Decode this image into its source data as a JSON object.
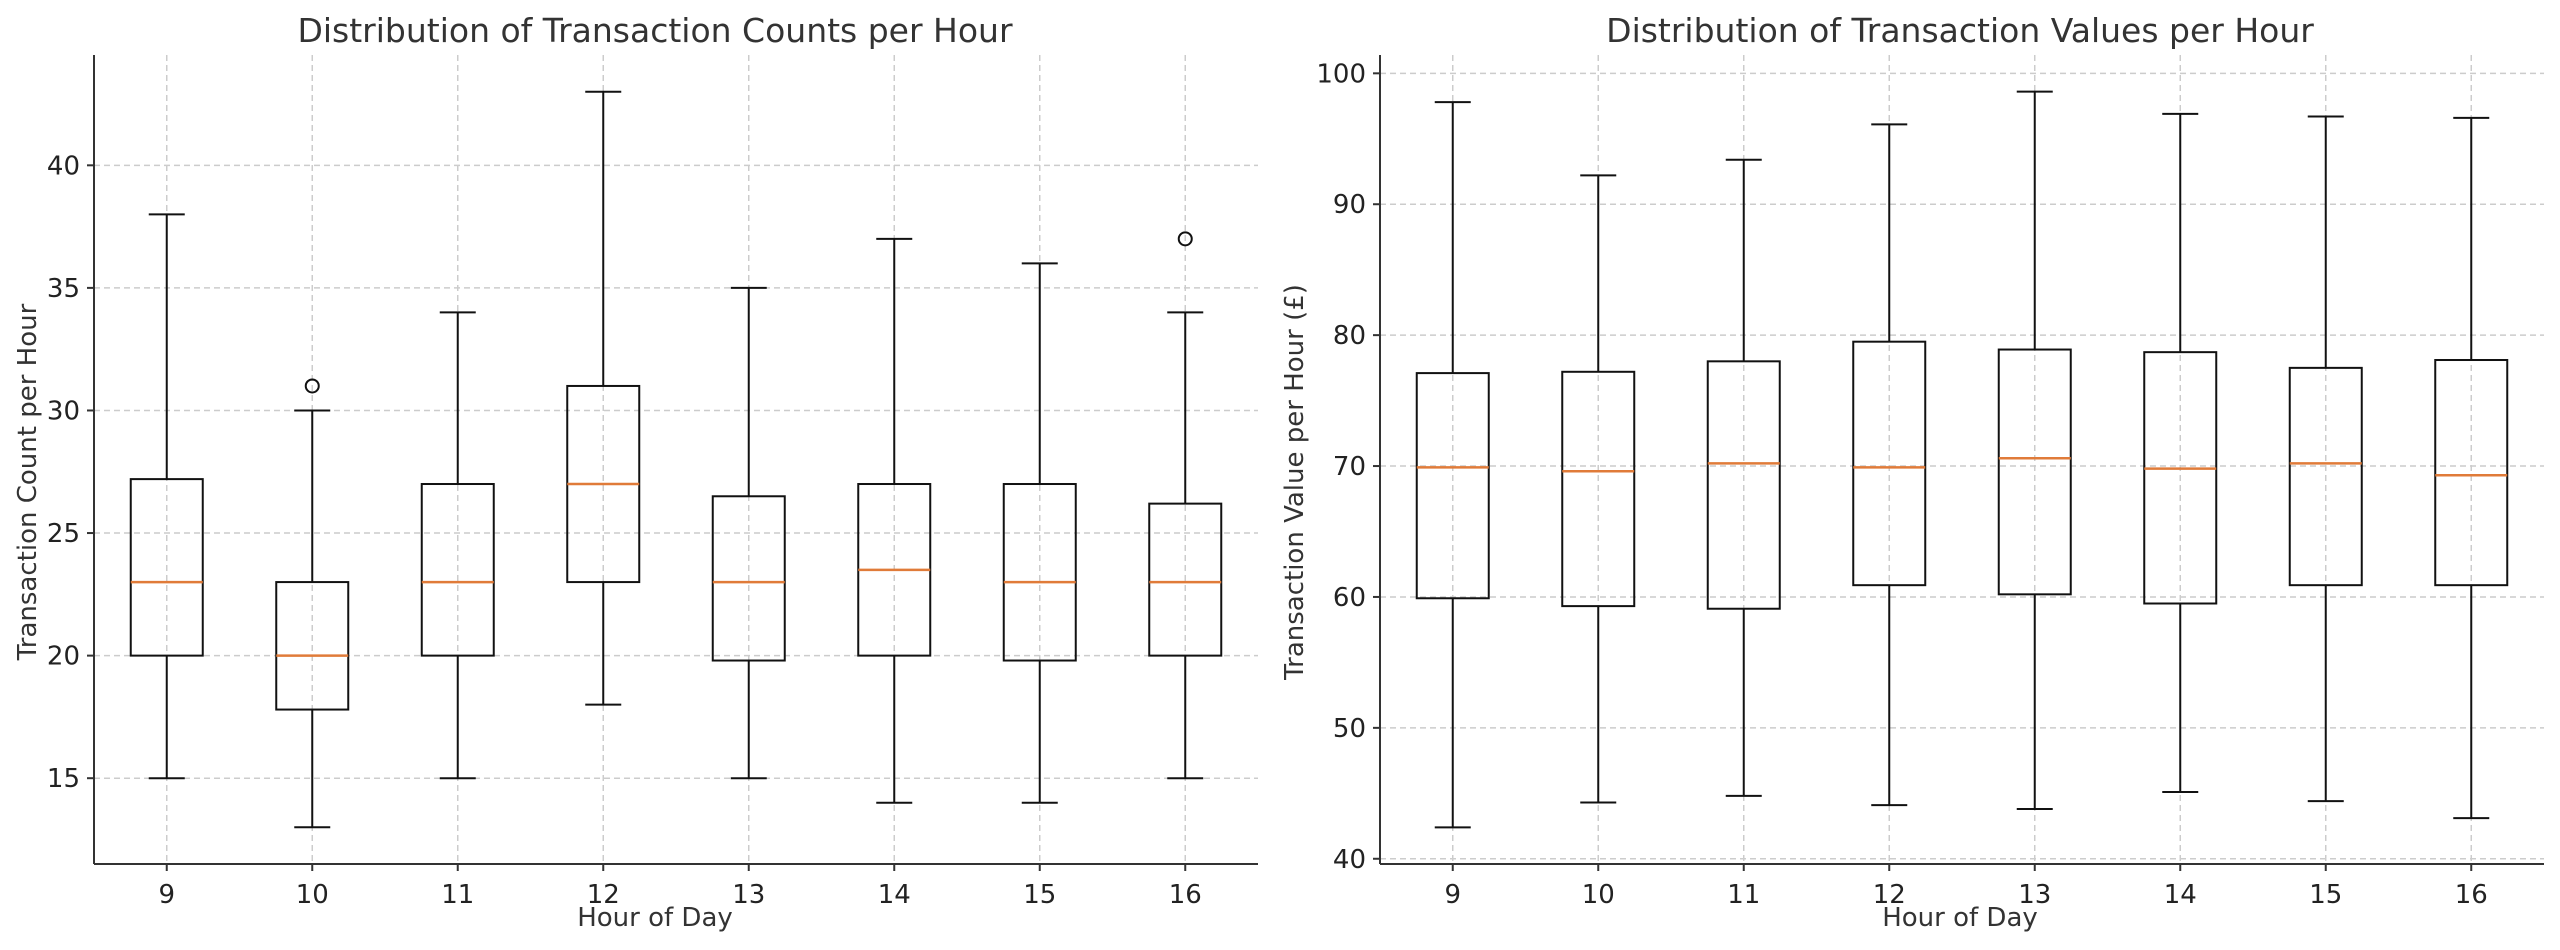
{
  "chart_data": [
    {
      "type": "box",
      "title": "Distribution of Transaction Counts per Hour",
      "xlabel": "Hour of Day",
      "ylabel": "Transaction Count per Hour",
      "categories": [
        "9",
        "10",
        "11",
        "12",
        "13",
        "14",
        "15",
        "16"
      ],
      "ylim": [
        11.5,
        44.5
      ],
      "yticks": [
        15,
        20,
        25,
        30,
        35,
        40
      ],
      "grid": true,
      "boxes": [
        {
          "whisker_low": 15,
          "q1": 20,
          "median": 23,
          "q3": 27.2,
          "whisker_high": 38,
          "fliers": []
        },
        {
          "whisker_low": 13,
          "q1": 17.8,
          "median": 20,
          "q3": 23,
          "whisker_high": 30,
          "fliers": [
            31
          ]
        },
        {
          "whisker_low": 15,
          "q1": 20,
          "median": 23,
          "q3": 27,
          "whisker_high": 34,
          "fliers": []
        },
        {
          "whisker_low": 18,
          "q1": 23,
          "median": 27,
          "q3": 31,
          "whisker_high": 43,
          "fliers": []
        },
        {
          "whisker_low": 15,
          "q1": 19.8,
          "median": 23,
          "q3": 26.5,
          "whisker_high": 35,
          "fliers": []
        },
        {
          "whisker_low": 14,
          "q1": 20,
          "median": 23.5,
          "q3": 27,
          "whisker_high": 37,
          "fliers": []
        },
        {
          "whisker_low": 14,
          "q1": 19.8,
          "median": 23,
          "q3": 27,
          "whisker_high": 36,
          "fliers": []
        },
        {
          "whisker_low": 15,
          "q1": 20,
          "median": 23,
          "q3": 26.2,
          "whisker_high": 34,
          "fliers": [
            37
          ]
        }
      ]
    },
    {
      "type": "box",
      "title": "Distribution of Transaction Values per Hour",
      "xlabel": "Hour of Day",
      "ylabel": "Transaction Value per Hour (£)",
      "categories": [
        "9",
        "10",
        "11",
        "12",
        "13",
        "14",
        "15",
        "16"
      ],
      "ylim": [
        39.6,
        101.4
      ],
      "yticks": [
        40,
        50,
        60,
        70,
        80,
        90,
        100
      ],
      "grid": true,
      "boxes": [
        {
          "whisker_low": 42.4,
          "q1": 59.9,
          "median": 69.9,
          "q3": 77.1,
          "whisker_high": 97.8,
          "fliers": []
        },
        {
          "whisker_low": 44.3,
          "q1": 59.3,
          "median": 69.6,
          "q3": 77.2,
          "whisker_high": 92.2,
          "fliers": []
        },
        {
          "whisker_low": 44.8,
          "q1": 59.1,
          "median": 70.2,
          "q3": 78.0,
          "whisker_high": 93.4,
          "fliers": []
        },
        {
          "whisker_low": 44.1,
          "q1": 60.9,
          "median": 69.9,
          "q3": 79.5,
          "whisker_high": 96.1,
          "fliers": []
        },
        {
          "whisker_low": 43.8,
          "q1": 60.2,
          "median": 70.6,
          "q3": 78.9,
          "whisker_high": 98.6,
          "fliers": []
        },
        {
          "whisker_low": 45.1,
          "q1": 59.5,
          "median": 69.8,
          "q3": 78.7,
          "whisker_high": 96.9,
          "fliers": []
        },
        {
          "whisker_low": 44.4,
          "q1": 60.9,
          "median": 70.2,
          "q3": 77.5,
          "whisker_high": 96.7,
          "fliers": []
        },
        {
          "whisker_low": 43.1,
          "q1": 60.9,
          "median": 69.3,
          "q3": 78.1,
          "whisker_high": 96.6,
          "fliers": []
        }
      ]
    }
  ],
  "colors": {
    "median": "#e07b39",
    "box": "#111111",
    "grid": "#cccccc",
    "text": "#333333"
  }
}
